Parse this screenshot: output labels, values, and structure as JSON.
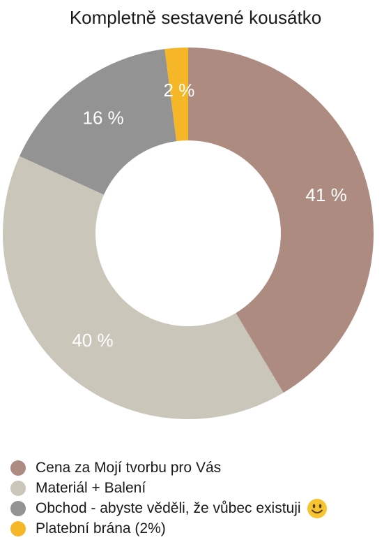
{
  "chart_data": {
    "type": "pie",
    "title": "Kompletně sestavené kousátko",
    "categories": [
      "Cena za Mojí tvorbu pro Vás",
      "Materiál + Balení",
      "Obchod - abyste věděli, že vůbec existuji",
      "Platební brána (2%)"
    ],
    "values": [
      41,
      40,
      16,
      2
    ],
    "labels": [
      "41 %",
      "40 %",
      "16 %",
      "2 %"
    ],
    "colors": [
      "#ad8b80",
      "#cbc6ba",
      "#939393",
      "#f5b728"
    ],
    "donut": true,
    "legend_position": "bottom"
  },
  "legend": {
    "emoji_icon": "smiley-face-icon"
  }
}
